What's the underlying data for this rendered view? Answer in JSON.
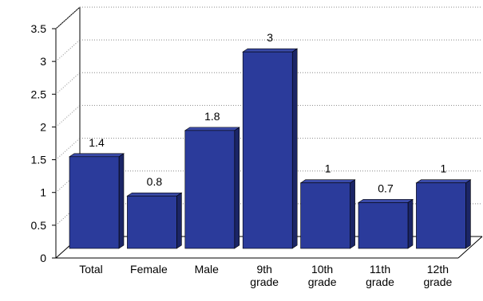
{
  "chart_data": {
    "type": "bar",
    "title": "",
    "xlabel": "",
    "ylabel": "",
    "categories": [
      [
        "Total"
      ],
      [
        "Female"
      ],
      [
        "Male"
      ],
      [
        "9th",
        "grade"
      ],
      [
        "10th",
        "grade"
      ],
      [
        "11th",
        "grade"
      ],
      [
        "12th",
        "grade"
      ]
    ],
    "values": [
      1.4,
      0.8,
      1.8,
      3,
      1,
      0.7,
      1
    ],
    "value_labels": [
      "1.4",
      "0.8",
      "1.8",
      "3",
      "1",
      "0.7",
      "1"
    ],
    "ylim": [
      0,
      3.5
    ],
    "yticks": [
      0,
      0.5,
      1,
      1.5,
      2,
      2.5,
      3,
      3.5
    ],
    "ytick_labels": [
      "0",
      "0.5",
      "1",
      "1.5",
      "2",
      "2.5",
      "3",
      "3.5"
    ],
    "grid": true,
    "legend": "none",
    "colors": {
      "bar_front": "#2b3b9b",
      "bar_top": "#3a4aa8",
      "bar_side": "#1b2566",
      "grid": "#888888",
      "axis": "#000000"
    }
  }
}
